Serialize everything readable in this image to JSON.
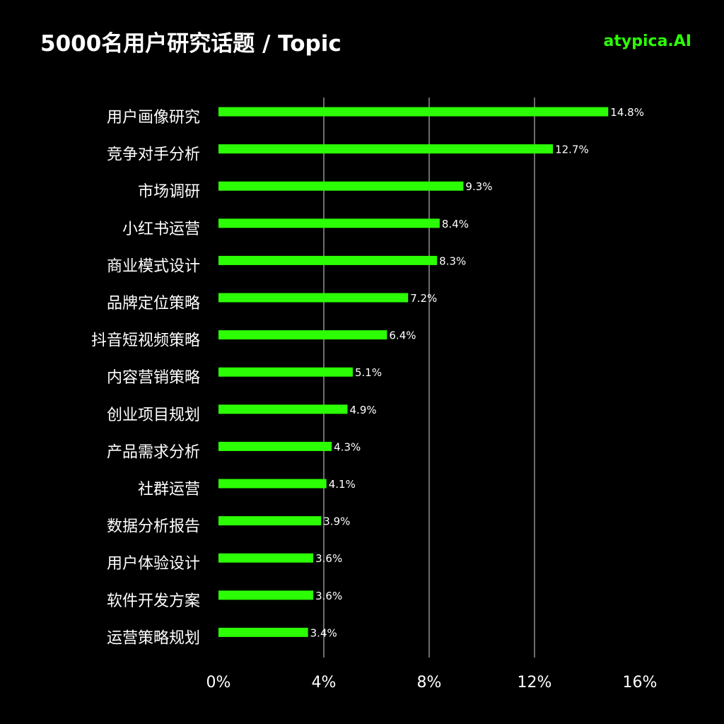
{
  "header": {
    "title": "5000名用户研究话题 / Topic",
    "brand": "atypica.AI"
  },
  "colors": {
    "background": "#000000",
    "bar": "#2cff05",
    "brand": "#2cff05",
    "gridline": "#ffffff",
    "text": "#ffffff"
  },
  "chart_data": {
    "type": "bar",
    "orientation": "horizontal",
    "title": "5000名用户研究话题 / Topic",
    "xlabel": "",
    "ylabel": "",
    "xlim": [
      0,
      16
    ],
    "x_ticks": [
      0,
      4,
      8,
      12,
      16
    ],
    "x_tick_labels": [
      "0%",
      "4%",
      "8%",
      "12%",
      "16%"
    ],
    "grid": "vertical lines at 4%, 8%, 12%",
    "categories": [
      "用户画像研究",
      "竞争对手分析",
      "市场调研",
      "小红书运营",
      "商业模式设计",
      "品牌定位策略",
      "抖音短视频策略",
      "内容营销策略",
      "创业项目规划",
      "产品需求分析",
      "社群运营",
      "数据分析报告",
      "用户体验设计",
      "软件开发方案",
      "运营策略规划"
    ],
    "values": [
      14.8,
      12.7,
      9.3,
      8.4,
      8.3,
      7.2,
      6.4,
      5.1,
      4.9,
      4.3,
      4.1,
      3.9,
      3.6,
      3.6,
      3.4
    ],
    "value_labels": [
      "14.8%",
      "12.7%",
      "9.3%",
      "8.4%",
      "8.3%",
      "7.2%",
      "6.4%",
      "5.1%",
      "4.9%",
      "4.3%",
      "4.1%",
      "3.9%",
      "3.6%",
      "3.6%",
      "3.4%"
    ]
  }
}
